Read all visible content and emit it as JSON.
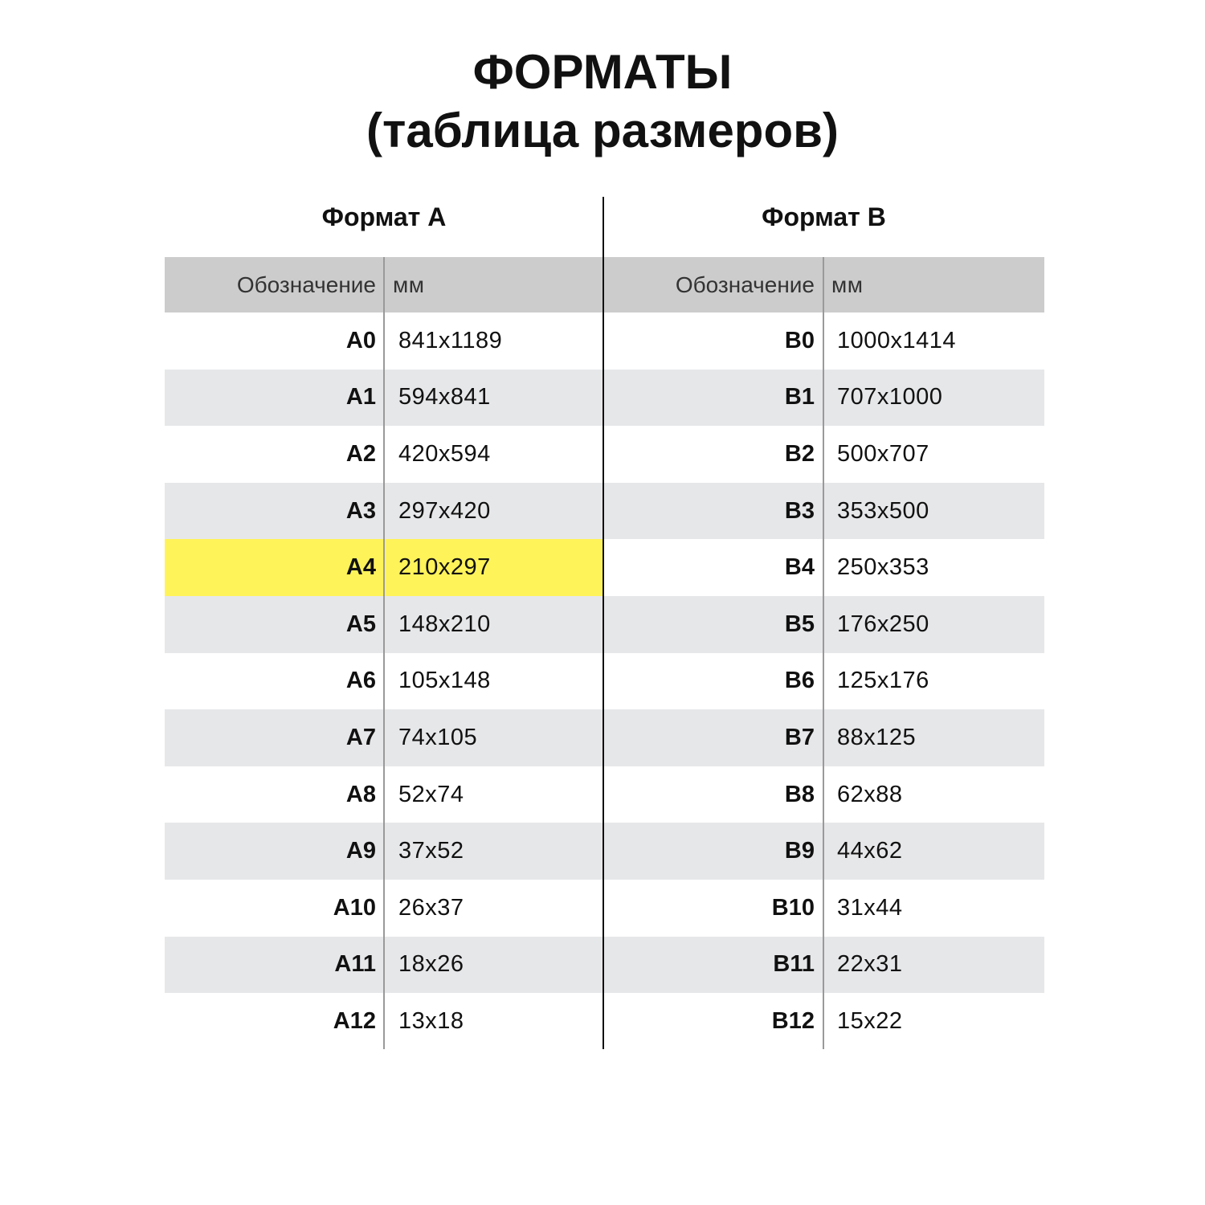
{
  "title": {
    "line1": "ФОРМАТЫ",
    "line2": "(таблица размеров)"
  },
  "colors": {
    "header_bg": "#cccccc",
    "alt_row_bg": "#e6e7e9",
    "highlight": "#fff35a"
  },
  "format_a": {
    "heading": "Формат A",
    "columns": [
      "Обозначение",
      "мм"
    ],
    "highlighted": "A4",
    "rows": [
      [
        "A0",
        "841x1189"
      ],
      [
        "A1",
        "594x841"
      ],
      [
        "A2",
        "420x594"
      ],
      [
        "A3",
        "297x420"
      ],
      [
        "A4",
        "210x297"
      ],
      [
        "A5",
        "148x210"
      ],
      [
        "A6",
        "105x148"
      ],
      [
        "A7",
        "74x105"
      ],
      [
        "A8",
        "52x74"
      ],
      [
        "A9",
        "37x52"
      ],
      [
        "A10",
        "26x37"
      ],
      [
        "A11",
        "18x26"
      ],
      [
        "A12",
        "13x18"
      ]
    ]
  },
  "format_b": {
    "heading": "Формат B",
    "columns": [
      "Обозначение",
      "мм"
    ],
    "rows": [
      [
        "B0",
        "1000x1414"
      ],
      [
        "B1",
        "707x1000"
      ],
      [
        "B2",
        "500x707"
      ],
      [
        "B3",
        "353x500"
      ],
      [
        "B4",
        "250x353"
      ],
      [
        "B5",
        "176x250"
      ],
      [
        "B6",
        "125x176"
      ],
      [
        "B7",
        "88x125"
      ],
      [
        "B8",
        "62x88"
      ],
      [
        "B9",
        "44x62"
      ],
      [
        "B10",
        "31x44"
      ],
      [
        "B11",
        "22x31"
      ],
      [
        "B12",
        "15x22"
      ]
    ]
  }
}
